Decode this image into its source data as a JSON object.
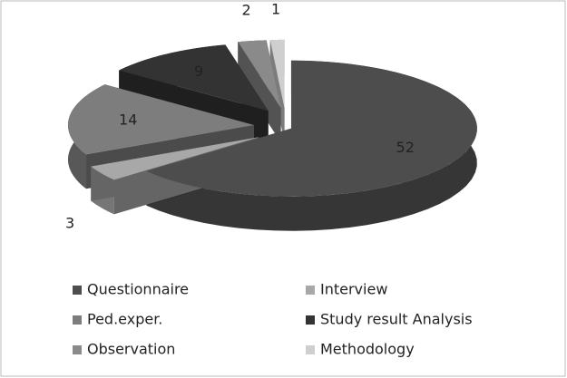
{
  "chart_data": {
    "type": "pie3d",
    "categories": [
      "Questionnaire",
      "Interview",
      "Ped.exper.",
      "Study result Analysis",
      "Observation",
      "Methodology"
    ],
    "values": [
      52,
      3,
      14,
      9,
      2,
      1
    ],
    "colors": [
      "#4d4d4d",
      "#a8a8a8",
      "#7d7d7d",
      "#333333",
      "#8a8a8a",
      "#cfcfcf"
    ],
    "legend": "bottom"
  }
}
